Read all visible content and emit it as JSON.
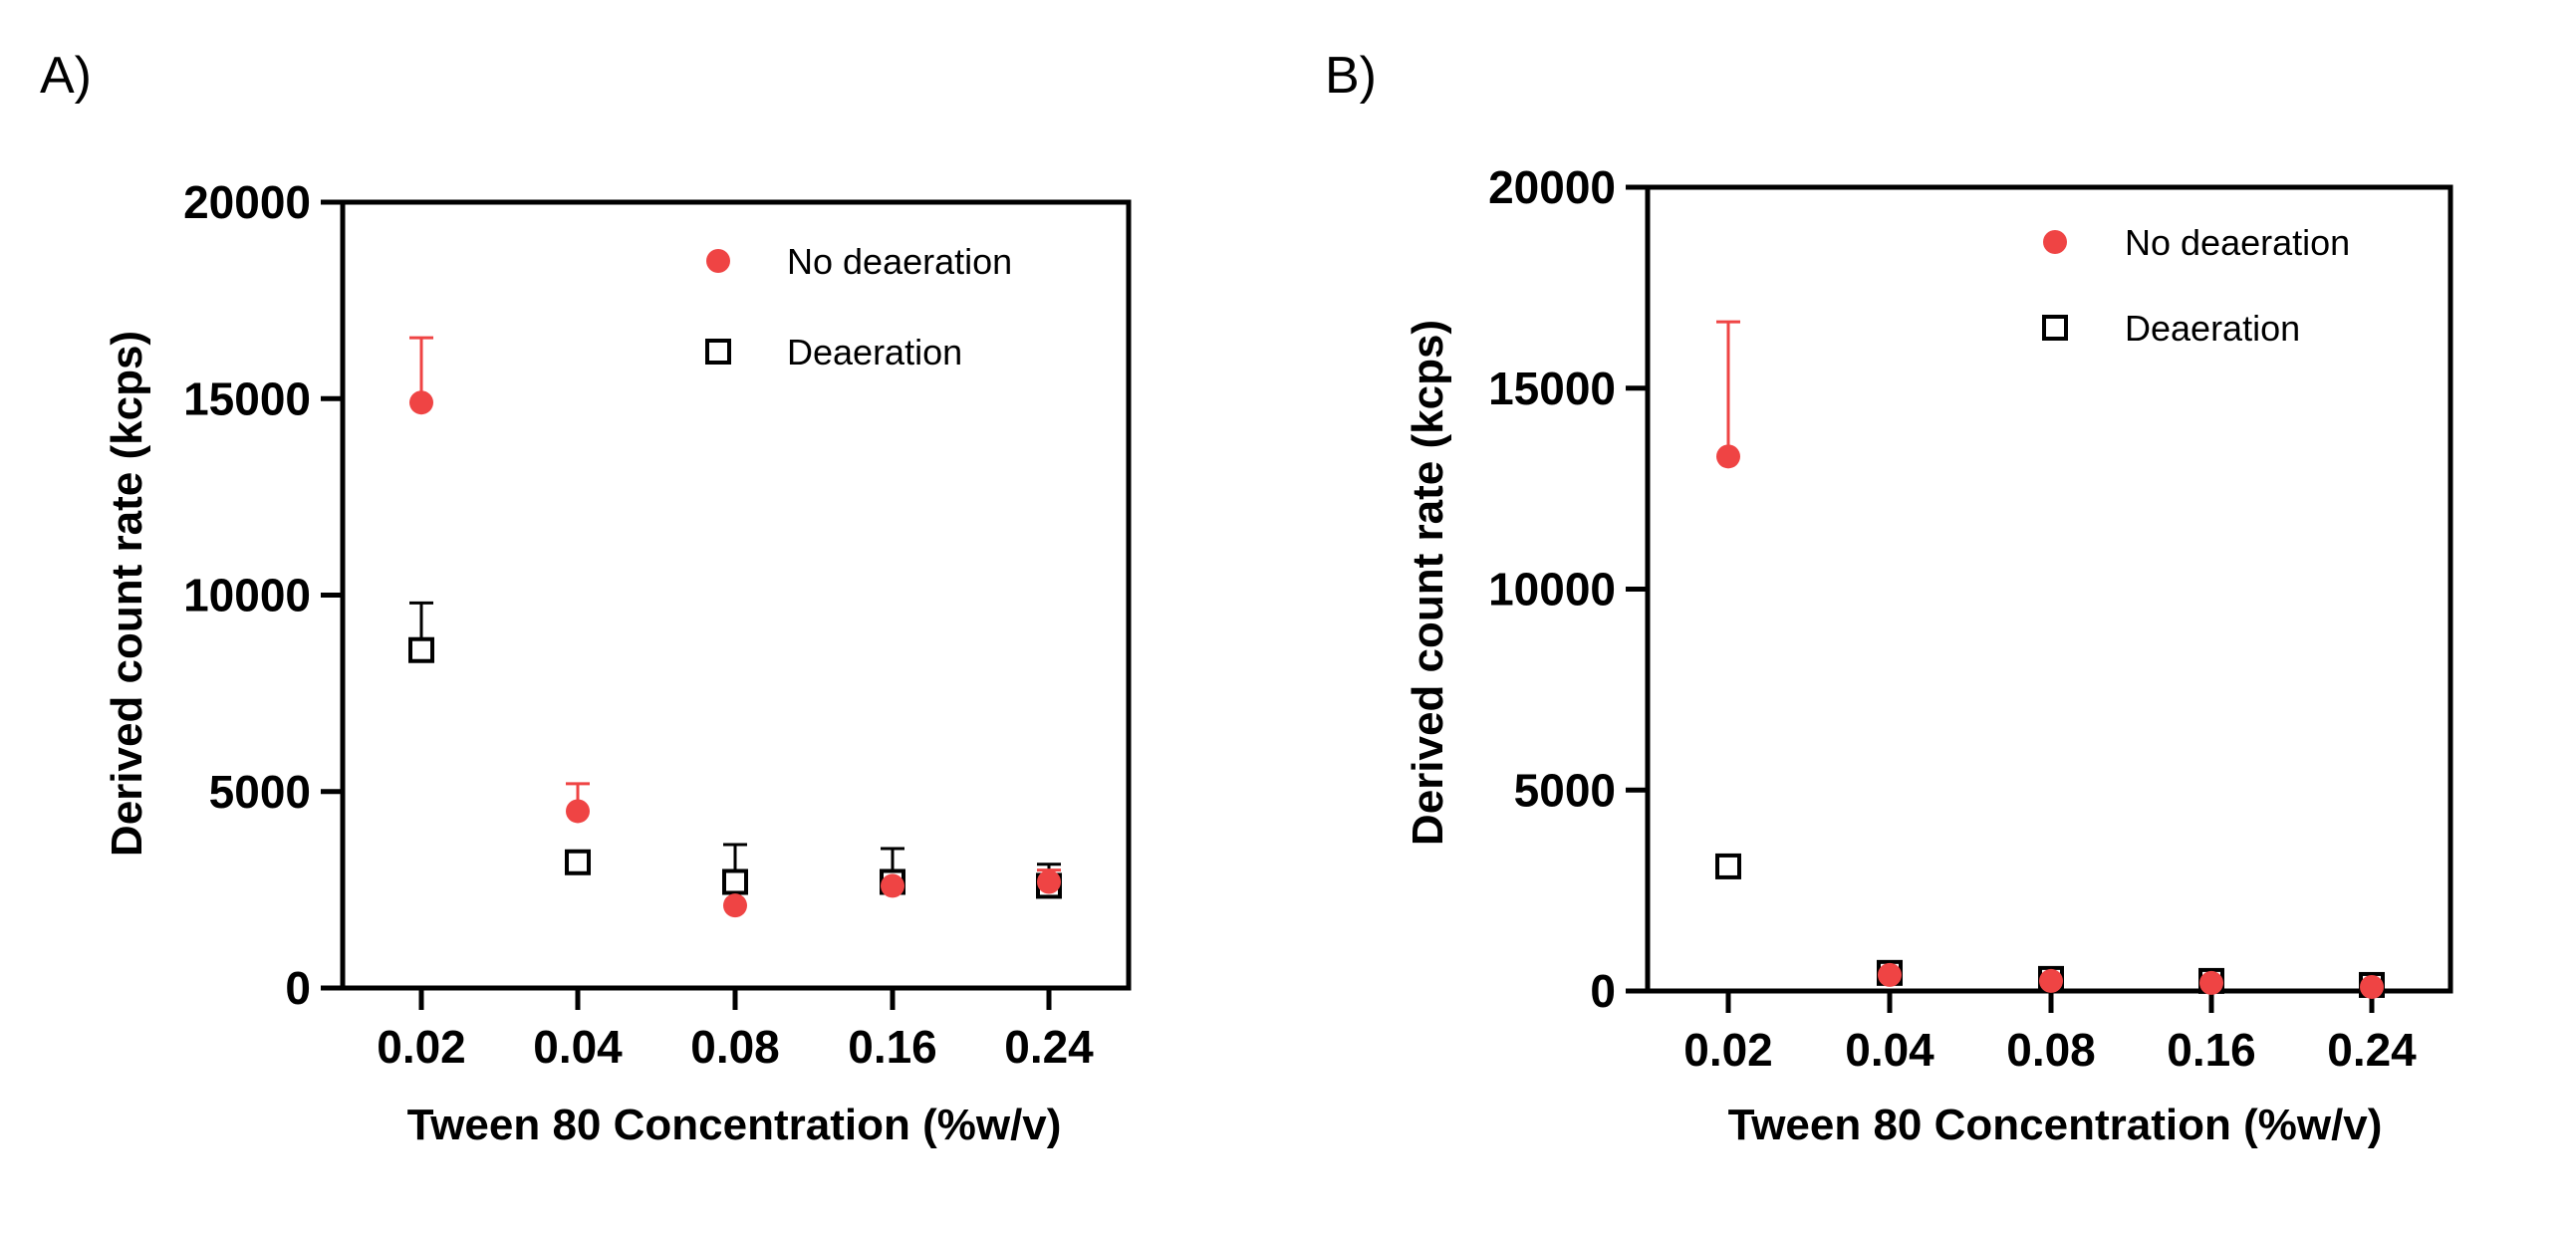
{
  "chart_data": [
    {
      "panel": "A)",
      "type": "scatter",
      "categories": [
        "0.02",
        "0.04",
        "0.08",
        "0.16",
        "0.24"
      ],
      "xlabel": "Tween 80 Concentration (%w/v)",
      "ylabel": "Derived count rate (kcps)",
      "ylim": [
        0,
        20000
      ],
      "yticks": [
        "0",
        "5000",
        "10000",
        "15000",
        "20000"
      ],
      "grid": false,
      "legend": "top-right",
      "series": [
        {
          "name": "No deaeration",
          "marker": "filled-circle",
          "color": "#ef4444",
          "values": [
            14900,
            4500,
            2100,
            2600,
            2700
          ],
          "errors": [
            1650,
            700,
            0,
            300,
            300
          ]
        },
        {
          "name": "Deaeration",
          "marker": "open-square",
          "color": "#000000",
          "values": [
            8600,
            3200,
            2700,
            2700,
            2600
          ],
          "errors": [
            1200,
            150,
            950,
            850,
            550
          ]
        }
      ]
    },
    {
      "panel": "B)",
      "type": "scatter",
      "categories": [
        "0.02",
        "0.04",
        "0.08",
        "0.16",
        "0.24"
      ],
      "xlabel": "Tween 80 Concentration (%w/v)",
      "ylabel": "Derived count rate (kcps)",
      "ylim": [
        0,
        20000
      ],
      "yticks": [
        "0",
        "5000",
        "10000",
        "15000",
        "20000"
      ],
      "grid": false,
      "legend": "top-right",
      "series": [
        {
          "name": "No deaeration",
          "marker": "filled-circle",
          "color": "#ef4444",
          "values": [
            13300,
            400,
            250,
            200,
            100
          ],
          "errors": [
            3350,
            0,
            0,
            0,
            0
          ]
        },
        {
          "name": "Deaeration",
          "marker": "open-square",
          "color": "#000000",
          "values": [
            3100,
            450,
            300,
            250,
            150
          ],
          "errors": [
            0,
            0,
            0,
            0,
            0
          ]
        }
      ]
    }
  ]
}
